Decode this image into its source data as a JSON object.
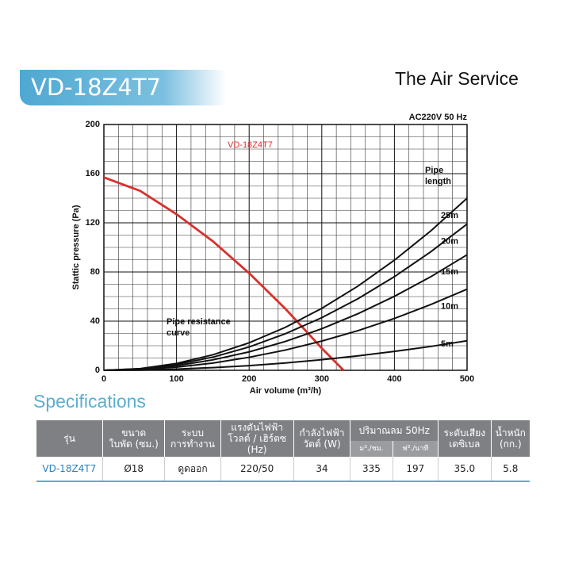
{
  "header": {
    "title": "VD-18Z4T7",
    "brand": "The Air Service"
  },
  "chart_data": {
    "type": "line",
    "subtitle": "AC220V 50 Hz",
    "x_label": "Air volume (m³/h)",
    "y_label": "Stattic pressure (Pa)",
    "annotations": [
      "Pipe resistance curve",
      "Pipe length"
    ],
    "xlim": [
      0,
      500
    ],
    "ylim": [
      0,
      200
    ],
    "xticks": [
      0,
      100,
      200,
      300,
      400,
      500
    ],
    "yticks": [
      0,
      40,
      80,
      120,
      160,
      200
    ],
    "grid": true,
    "series": [
      {
        "name": "VD-18Z4T7",
        "color": "#d9302c",
        "x": [
          0,
          50,
          100,
          150,
          200,
          250,
          300,
          330
        ],
        "values": [
          157,
          146,
          127,
          105,
          79,
          50,
          18,
          0
        ]
      },
      {
        "name": "25m",
        "color": "#111111",
        "x": [
          0,
          50,
          100,
          150,
          200,
          250,
          300,
          350,
          400,
          450,
          500
        ],
        "values": [
          0,
          1.4,
          5.6,
          12.6,
          22.4,
          35,
          50.4,
          68.6,
          89.6,
          113.4,
          140
        ]
      },
      {
        "name": "20m",
        "color": "#111111",
        "x": [
          0,
          50,
          100,
          150,
          200,
          250,
          300,
          350,
          400,
          450,
          500
        ],
        "values": [
          0,
          1.2,
          4.8,
          10.7,
          19,
          29.8,
          42.8,
          58.3,
          76.2,
          96.4,
          119
        ]
      },
      {
        "name": "15m",
        "color": "#111111",
        "x": [
          0,
          50,
          100,
          150,
          200,
          250,
          300,
          350,
          400,
          450,
          500
        ],
        "values": [
          0,
          0.9,
          3.8,
          8.5,
          15,
          23.5,
          33.8,
          46.1,
          60.2,
          76.1,
          94
        ]
      },
      {
        "name": "10m",
        "color": "#111111",
        "x": [
          0,
          50,
          100,
          150,
          200,
          250,
          300,
          350,
          400,
          450,
          500
        ],
        "values": [
          0,
          0.7,
          2.6,
          5.9,
          10.6,
          16.5,
          23.8,
          32.3,
          42.2,
          53.5,
          66
        ]
      },
      {
        "name": "5m",
        "color": "#111111",
        "x": [
          0,
          50,
          100,
          150,
          200,
          250,
          300,
          350,
          400,
          450,
          500
        ],
        "values": [
          0,
          0.2,
          1,
          2.2,
          3.8,
          6,
          8.6,
          11.8,
          15.4,
          19.4,
          24
        ]
      }
    ]
  },
  "specifications": {
    "title": "Specifications",
    "headers": [
      [
        "รุ่น"
      ],
      [
        "ขนาด",
        "ใบพัด (ซม.)"
      ],
      [
        "ระบบ",
        "การทำงาน"
      ],
      [
        "แรงดันไฟฟ้า",
        "โวลต์ / เฮิร์ตซ",
        "(Hz)"
      ],
      [
        "กำลังไฟฟ้า",
        "วัตต์ (W)"
      ],
      [
        "ปริมาณลม 50Hz"
      ],
      [
        "ระดับเสียง",
        "เดซิเบล"
      ],
      [
        "น้ำหนัก",
        "(กก.)"
      ]
    ],
    "subheaders": [
      "ม³./ชม.",
      "ฟ³./นาที"
    ],
    "rows": [
      [
        "VD-18Z4T7",
        "Ø18",
        "ดูดออก",
        "220/50",
        "34",
        "335",
        "197",
        "35.0",
        "5.8"
      ]
    ]
  }
}
